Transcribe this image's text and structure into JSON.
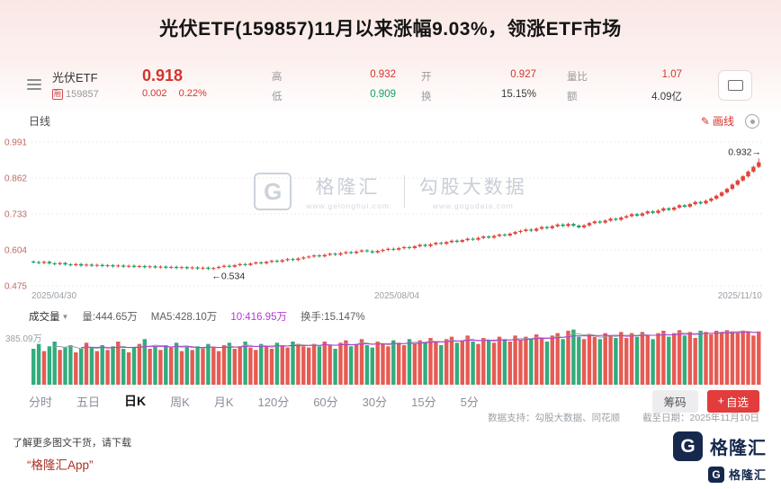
{
  "title": "光伏ETF(159857)11月以来涨幅9.03%，领涨ETF市场",
  "icons": {
    "pencil": "✎",
    "caret_down": "▼",
    "plus": "+"
  },
  "quote": {
    "name": "光伏ETF",
    "badge": "融",
    "code": "159857",
    "price": "0.918",
    "change": "0.002",
    "change_pct": "0.22%",
    "fields": [
      {
        "label": "高",
        "value": "0.932"
      },
      {
        "label": "低",
        "value": "0.909"
      },
      {
        "label": "开",
        "value": "0.927"
      },
      {
        "label": "换",
        "value": "15.15%"
      },
      {
        "label": "量比",
        "value": "1.07"
      },
      {
        "label": "额",
        "value": "4.09亿"
      }
    ]
  },
  "toolbar": {
    "period_label": "日线",
    "draw_label": "画线"
  },
  "volume_header": {
    "name": "成交量",
    "vol": "量:444.65万",
    "ma5": "MA5:428.10万",
    "ma10": "10:416.95万",
    "turnover": "换手:15.147%"
  },
  "tabs": {
    "items": [
      "分时",
      "五日",
      "日K",
      "周K",
      "月K",
      "120分",
      "60分",
      "30分",
      "15分",
      "5分"
    ],
    "active": "日K",
    "chip": "筹码",
    "watchlist_label": "自选"
  },
  "attribution": {
    "support": "数据支持：勾股大数据、同花顺",
    "date": "截至日期：2025年11月10日"
  },
  "watermark": {
    "logo_letter": "G",
    "brand": "格隆汇",
    "brand_url": "www.gelonghui.com",
    "partner": "勾股大数据",
    "partner_url": "www.gogudata.com"
  },
  "footer": {
    "line1": "了解更多图文干货，请下载",
    "line2": "“格隆汇App”",
    "logo_letter": "G",
    "logo_text": "格隆汇"
  },
  "chart_data": {
    "type": "candlestick",
    "title": "光伏ETF(159857) 日K线",
    "x_axis_labels": [
      "2025/04/30",
      "2025/08/04",
      "2025/11/10"
    ],
    "y_axis_ticks": [
      0.991,
      0.862,
      0.733,
      0.604,
      0.475
    ],
    "y_range": [
      0.475,
      0.991
    ],
    "latest_price_label": "0.932→",
    "last_high": 0.932,
    "low_annotation": "←0.534",
    "up_color": "#e2443b",
    "down_color": "#16a06a",
    "volume_ma5_color": "#999ea6",
    "volume_ma10_color": "#b13bd4",
    "volume_axis_label": "385.09万",
    "volume_axis_value": 385.09,
    "closes": [
      0.56,
      0.557,
      0.561,
      0.556,
      0.553,
      0.557,
      0.552,
      0.549,
      0.553,
      0.548,
      0.551,
      0.547,
      0.55,
      0.546,
      0.549,
      0.545,
      0.548,
      0.544,
      0.547,
      0.543,
      0.546,
      0.542,
      0.545,
      0.541,
      0.544,
      0.54,
      0.543,
      0.539,
      0.542,
      0.538,
      0.541,
      0.537,
      0.54,
      0.536,
      0.539,
      0.543,
      0.547,
      0.544,
      0.549,
      0.553,
      0.55,
      0.555,
      0.559,
      0.556,
      0.561,
      0.565,
      0.562,
      0.567,
      0.571,
      0.568,
      0.573,
      0.577,
      0.58,
      0.584,
      0.581,
      0.586,
      0.59,
      0.587,
      0.592,
      0.596,
      0.593,
      0.598,
      0.602,
      0.599,
      0.595,
      0.6,
      0.604,
      0.608,
      0.605,
      0.61,
      0.614,
      0.611,
      0.617,
      0.622,
      0.618,
      0.624,
      0.629,
      0.626,
      0.632,
      0.637,
      0.633,
      0.639,
      0.644,
      0.641,
      0.647,
      0.652,
      0.648,
      0.654,
      0.659,
      0.656,
      0.662,
      0.668,
      0.672,
      0.677,
      0.673,
      0.68,
      0.686,
      0.682,
      0.689,
      0.695,
      0.69,
      0.697,
      0.691,
      0.685,
      0.692,
      0.7,
      0.706,
      0.702,
      0.709,
      0.716,
      0.712,
      0.72,
      0.725,
      0.732,
      0.727,
      0.735,
      0.742,
      0.737,
      0.745,
      0.753,
      0.748,
      0.756,
      0.764,
      0.759,
      0.768,
      0.776,
      0.771,
      0.78,
      0.788,
      0.798,
      0.81,
      0.823,
      0.838,
      0.853,
      0.868,
      0.885,
      0.902,
      0.918
    ],
    "volumes": [
      300,
      340,
      280,
      320,
      360,
      290,
      310,
      330,
      270,
      300,
      350,
      310,
      280,
      330,
      290,
      320,
      360,
      300,
      270,
      310,
      340,
      380,
      300,
      320,
      290,
      330,
      310,
      350,
      280,
      320,
      290,
      320,
      300,
      340,
      310,
      280,
      330,
      350,
      300,
      320,
      360,
      310,
      290,
      340,
      320,
      300,
      350,
      330,
      310,
      360,
      340,
      320,
      310,
      340,
      320,
      360,
      330,
      300,
      350,
      370,
      320,
      340,
      380,
      330,
      310,
      360,
      340,
      320,
      370,
      350,
      330,
      380,
      340,
      370,
      350,
      390,
      360,
      330,
      380,
      400,
      350,
      370,
      410,
      360,
      340,
      390,
      370,
      350,
      400,
      380,
      360,
      410,
      370,
      400,
      380,
      420,
      390,
      360,
      410,
      430,
      380,
      450,
      460,
      400,
      380,
      420,
      400,
      380,
      430,
      410,
      390,
      440,
      390,
      430,
      400,
      440,
      410,
      380,
      430,
      450,
      400,
      430,
      455,
      410,
      440,
      390,
      450,
      440,
      420,
      450,
      430,
      455,
      445,
      430,
      452,
      440,
      410,
      444.65
    ]
  }
}
